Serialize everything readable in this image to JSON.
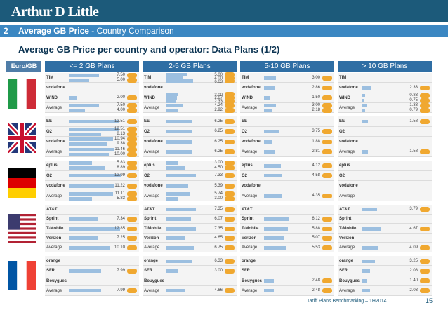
{
  "header": {
    "logo": "Arthur D Little"
  },
  "section": {
    "number": "2",
    "title_bold": "Average GB Price",
    "title_rest": " - Country Comparison"
  },
  "title": "Average GB Price per country and operator: Data Plans (1/2)",
  "unit_label": "Euro/GB",
  "footer": {
    "text": "Tariff Plans Benchmarking – 1H2014",
    "page": "15"
  },
  "colors": {
    "header": "#1c5a7a",
    "band": "#3b87c2",
    "col_header": "#2f6ea4",
    "bar": "#9cbfe0",
    "coin": "#f0a830"
  },
  "countries": [
    {
      "icon": "italy-flag-icon"
    },
    {
      "icon": "uk-flag-icon"
    },
    {
      "icon": "germany-flag-icon"
    },
    {
      "icon": "usa-flag-icon"
    },
    {
      "icon": "france-flag-icon"
    }
  ],
  "chart_data": {
    "type": "bar",
    "title": "Average GB Price per country and operator: Data Plans (1/2)",
    "unit": "Euro/GB",
    "columns": [
      "<= 2 GB Plans",
      "2-5 GB Plans",
      "5-10 GB Plans",
      "> 10 GB Plans"
    ],
    "panels": [
      [
        {
          "rows": [
            {
              "op": "TIM",
              "values": [
                "7.50",
                "5.00"
              ]
            },
            {
              "op": "vodafone",
              "values": []
            },
            {
              "op": "WIND",
              "values": [
                "2.00"
              ]
            },
            {
              "op": "Average",
              "values": [
                "7.50",
                "4.00"
              ]
            }
          ]
        },
        {
          "rows": [
            {
              "op": "TIM",
              "values": [
                "5.00",
                "4.00",
                "6.63"
              ]
            },
            {
              "op": "vodafone",
              "values": []
            },
            {
              "op": "WIND",
              "values": [
                "3.00",
                "2.67",
                "2.33"
              ]
            },
            {
              "op": "Average",
              "values": [
                "4.24",
                "2.92"
              ]
            }
          ]
        },
        {
          "rows": [
            {
              "op": "TIM",
              "values": [
                "3.00"
              ]
            },
            {
              "op": "vodafone",
              "values": [
                "2.86"
              ]
            },
            {
              "op": "WIND",
              "values": [
                "1.50"
              ]
            },
            {
              "op": "Average",
              "values": [
                "3.00",
                "2.18"
              ]
            }
          ]
        },
        {
          "rows": [
            {
              "op": "TIM",
              "values": []
            },
            {
              "op": "vodafone",
              "values": [
                "2.33"
              ]
            },
            {
              "op": "WIND",
              "values": [
                "0.83",
                "0.75"
              ]
            },
            {
              "op": "Average",
              "values": [
                "1.33",
                "0.79"
              ]
            }
          ]
        }
      ],
      [
        {
          "rows": [
            {
              "op": "EE",
              "values": [
                "12.51"
              ]
            },
            {
              "op": "O2",
              "values": [
                "12.51",
                "8.13"
              ]
            },
            {
              "op": "vodafone",
              "values": [
                "10.94",
                "9.38"
              ]
            },
            {
              "op": "Average",
              "values": [
                "11.46",
                "10.00"
              ]
            }
          ]
        },
        {
          "rows": [
            {
              "op": "EE",
              "values": [
                "6.25"
              ]
            },
            {
              "op": "O2",
              "values": [
                "6.25"
              ]
            },
            {
              "op": "vodafone",
              "values": [
                "6.25"
              ]
            },
            {
              "op": "Average",
              "values": [
                "6.25"
              ]
            }
          ]
        },
        {
          "rows": [
            {
              "op": "EE",
              "values": []
            },
            {
              "op": "O2",
              "values": [
                "3.75"
              ]
            },
            {
              "op": "vodafone",
              "values": [
                "1.88"
              ]
            },
            {
              "op": "Average",
              "values": [
                "2.81"
              ]
            }
          ]
        },
        {
          "rows": [
            {
              "op": "EE",
              "values": [
                "1.58"
              ]
            },
            {
              "op": "O2",
              "values": []
            },
            {
              "op": "vodafone",
              "values": []
            },
            {
              "op": "Average",
              "values": [
                "1.58"
              ]
            }
          ]
        }
      ],
      [
        {
          "rows": [
            {
              "op": "eplus",
              "values": [
                "5.83",
                "8.89"
              ]
            },
            {
              "op": "O2",
              "values": [
                "12.99"
              ]
            },
            {
              "op": "vodafone",
              "values": [
                "11.22"
              ]
            },
            {
              "op": "Average",
              "values": [
                "11.11",
                "5.83"
              ]
            }
          ]
        },
        {
          "rows": [
            {
              "op": "eplus",
              "values": [
                "3.00",
                "4.50"
              ]
            },
            {
              "op": "O2",
              "values": [
                "7.33"
              ]
            },
            {
              "op": "vodafone",
              "values": [
                "5.39"
              ]
            },
            {
              "op": "Average",
              "values": [
                "5.74",
                "3.00"
              ]
            }
          ]
        },
        {
          "rows": [
            {
              "op": "eplus",
              "values": [
                "4.12"
              ]
            },
            {
              "op": "O2",
              "values": [
                "4.58"
              ]
            },
            {
              "op": "vodafone",
              "values": []
            },
            {
              "op": "Average",
              "values": [
                "4.35"
              ]
            }
          ]
        },
        {
          "rows": [
            {
              "op": "eplus",
              "values": []
            },
            {
              "op": "O2",
              "values": []
            },
            {
              "op": "vodafone",
              "values": []
            },
            {
              "op": "Average",
              "values": []
            }
          ]
        }
      ],
      [
        {
          "rows": [
            {
              "op": "AT&T",
              "values": []
            },
            {
              "op": "Sprint",
              "values": [
                "7.34"
              ]
            },
            {
              "op": "T-Mobile",
              "values": [
                "12.85"
              ]
            },
            {
              "op": "Verizon",
              "values": [
                "7.25"
              ]
            },
            {
              "op": "Average",
              "values": [
                "10.10"
              ]
            }
          ]
        },
        {
          "rows": [
            {
              "op": "AT&T",
              "values": [
                "7.35"
              ]
            },
            {
              "op": "Sprint",
              "values": [
                "6.07"
              ]
            },
            {
              "op": "T-Mobile",
              "values": [
                "7.35"
              ]
            },
            {
              "op": "Verizon",
              "values": [
                "4.65"
              ]
            },
            {
              "op": "Average",
              "values": [
                "6.75"
              ]
            }
          ]
        },
        {
          "rows": [
            {
              "op": "AT&T",
              "values": []
            },
            {
              "op": "Sprint",
              "values": [
                "6.12"
              ]
            },
            {
              "op": "T-Mobile",
              "values": [
                "5.88"
              ]
            },
            {
              "op": "Verizon",
              "values": [
                "5.07"
              ]
            },
            {
              "op": "Average",
              "values": [
                "5.53"
              ]
            }
          ]
        },
        {
          "rows": [
            {
              "op": "AT&T",
              "values": [
                "3.79"
              ]
            },
            {
              "op": "Sprint",
              "values": []
            },
            {
              "op": "T-Mobile",
              "values": [
                "4.67"
              ]
            },
            {
              "op": "Verizon",
              "values": []
            },
            {
              "op": "Average",
              "values": [
                "4.09"
              ]
            }
          ]
        }
      ],
      [
        {
          "rows": [
            {
              "op": "orange",
              "values": []
            },
            {
              "op": "SFR",
              "values": [
                "7.99"
              ]
            },
            {
              "op": "Bouygues",
              "values": []
            },
            {
              "op": "Average",
              "values": [
                "7.99"
              ]
            }
          ]
        },
        {
          "rows": [
            {
              "op": "orange",
              "values": [
                "6.33"
              ]
            },
            {
              "op": "SFR",
              "values": [
                "3.00"
              ]
            },
            {
              "op": "Bouygues",
              "values": []
            },
            {
              "op": "Average",
              "values": [
                "4.66"
              ]
            }
          ]
        },
        {
          "rows": [
            {
              "op": "orange",
              "values": []
            },
            {
              "op": "SFR",
              "values": []
            },
            {
              "op": "Bouygues",
              "values": [
                "2.48"
              ]
            },
            {
              "op": "Average",
              "values": [
                "2.48"
              ]
            }
          ]
        },
        {
          "rows": [
            {
              "op": "orange",
              "values": [
                "3.25"
              ]
            },
            {
              "op": "SFR",
              "values": [
                "2.08"
              ]
            },
            {
              "op": "Bouygues",
              "values": [
                "1.40"
              ]
            },
            {
              "op": "Average",
              "values": [
                "2.03"
              ]
            }
          ]
        }
      ]
    ]
  }
}
